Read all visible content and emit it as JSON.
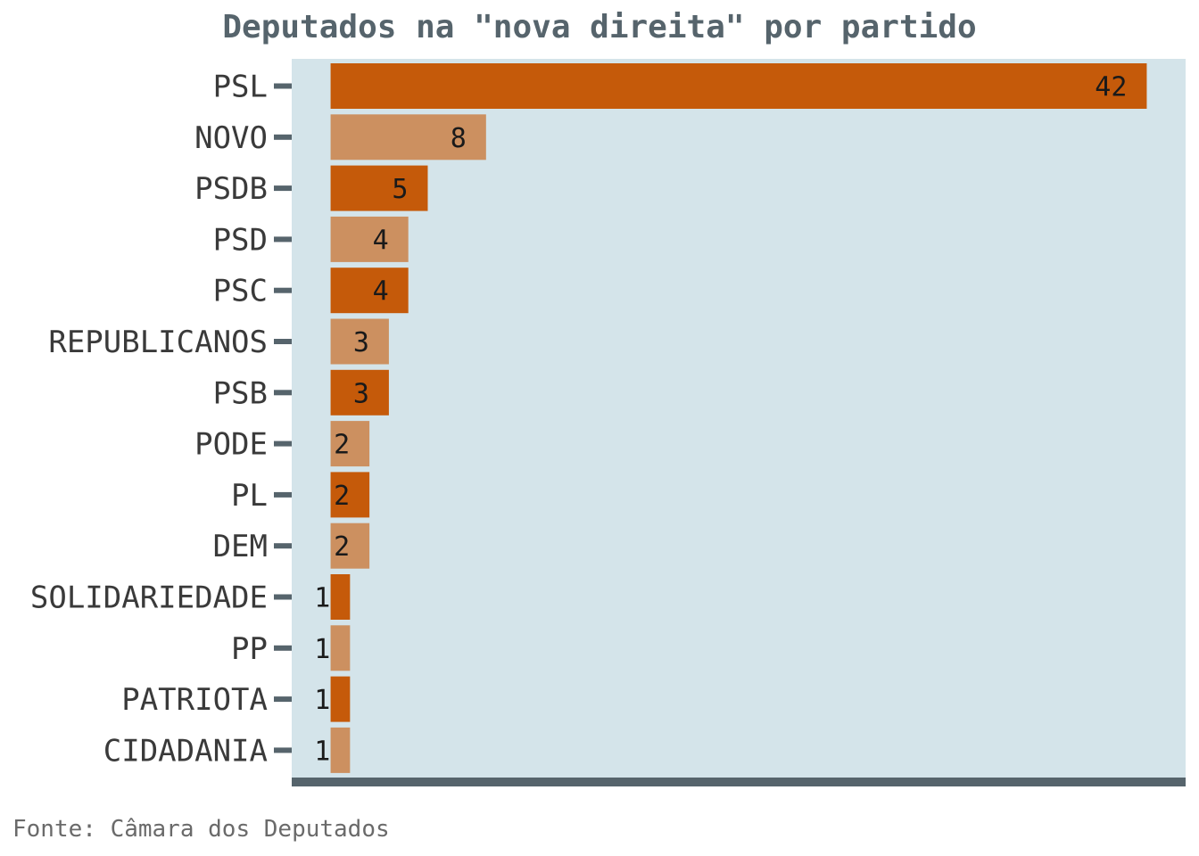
{
  "chart_data": {
    "type": "bar",
    "orientation": "horizontal",
    "title": "Deputados na \"nova direita\" por partido",
    "source": "Fonte: Câmara dos Deputados",
    "categories": [
      "PSL",
      "NOVO",
      "PSDB",
      "PSD",
      "PSC",
      "REPUBLICANOS",
      "PSB",
      "PODE",
      "PL",
      "DEM",
      "SOLIDARIEDADE",
      "PP",
      "PATRIOTA",
      "CIDADANIA"
    ],
    "values": [
      42,
      8,
      5,
      4,
      4,
      3,
      3,
      2,
      2,
      2,
      1,
      1,
      1,
      1
    ],
    "xlim": [
      -2,
      44
    ],
    "xlabel": "",
    "ylabel": "",
    "grid": false,
    "legend": "none",
    "colors": {
      "bar_dark": "#c55a0a",
      "bar_light": "#cc9060",
      "panel_bg": "#d4e4ea",
      "axis": "#56646c"
    }
  }
}
